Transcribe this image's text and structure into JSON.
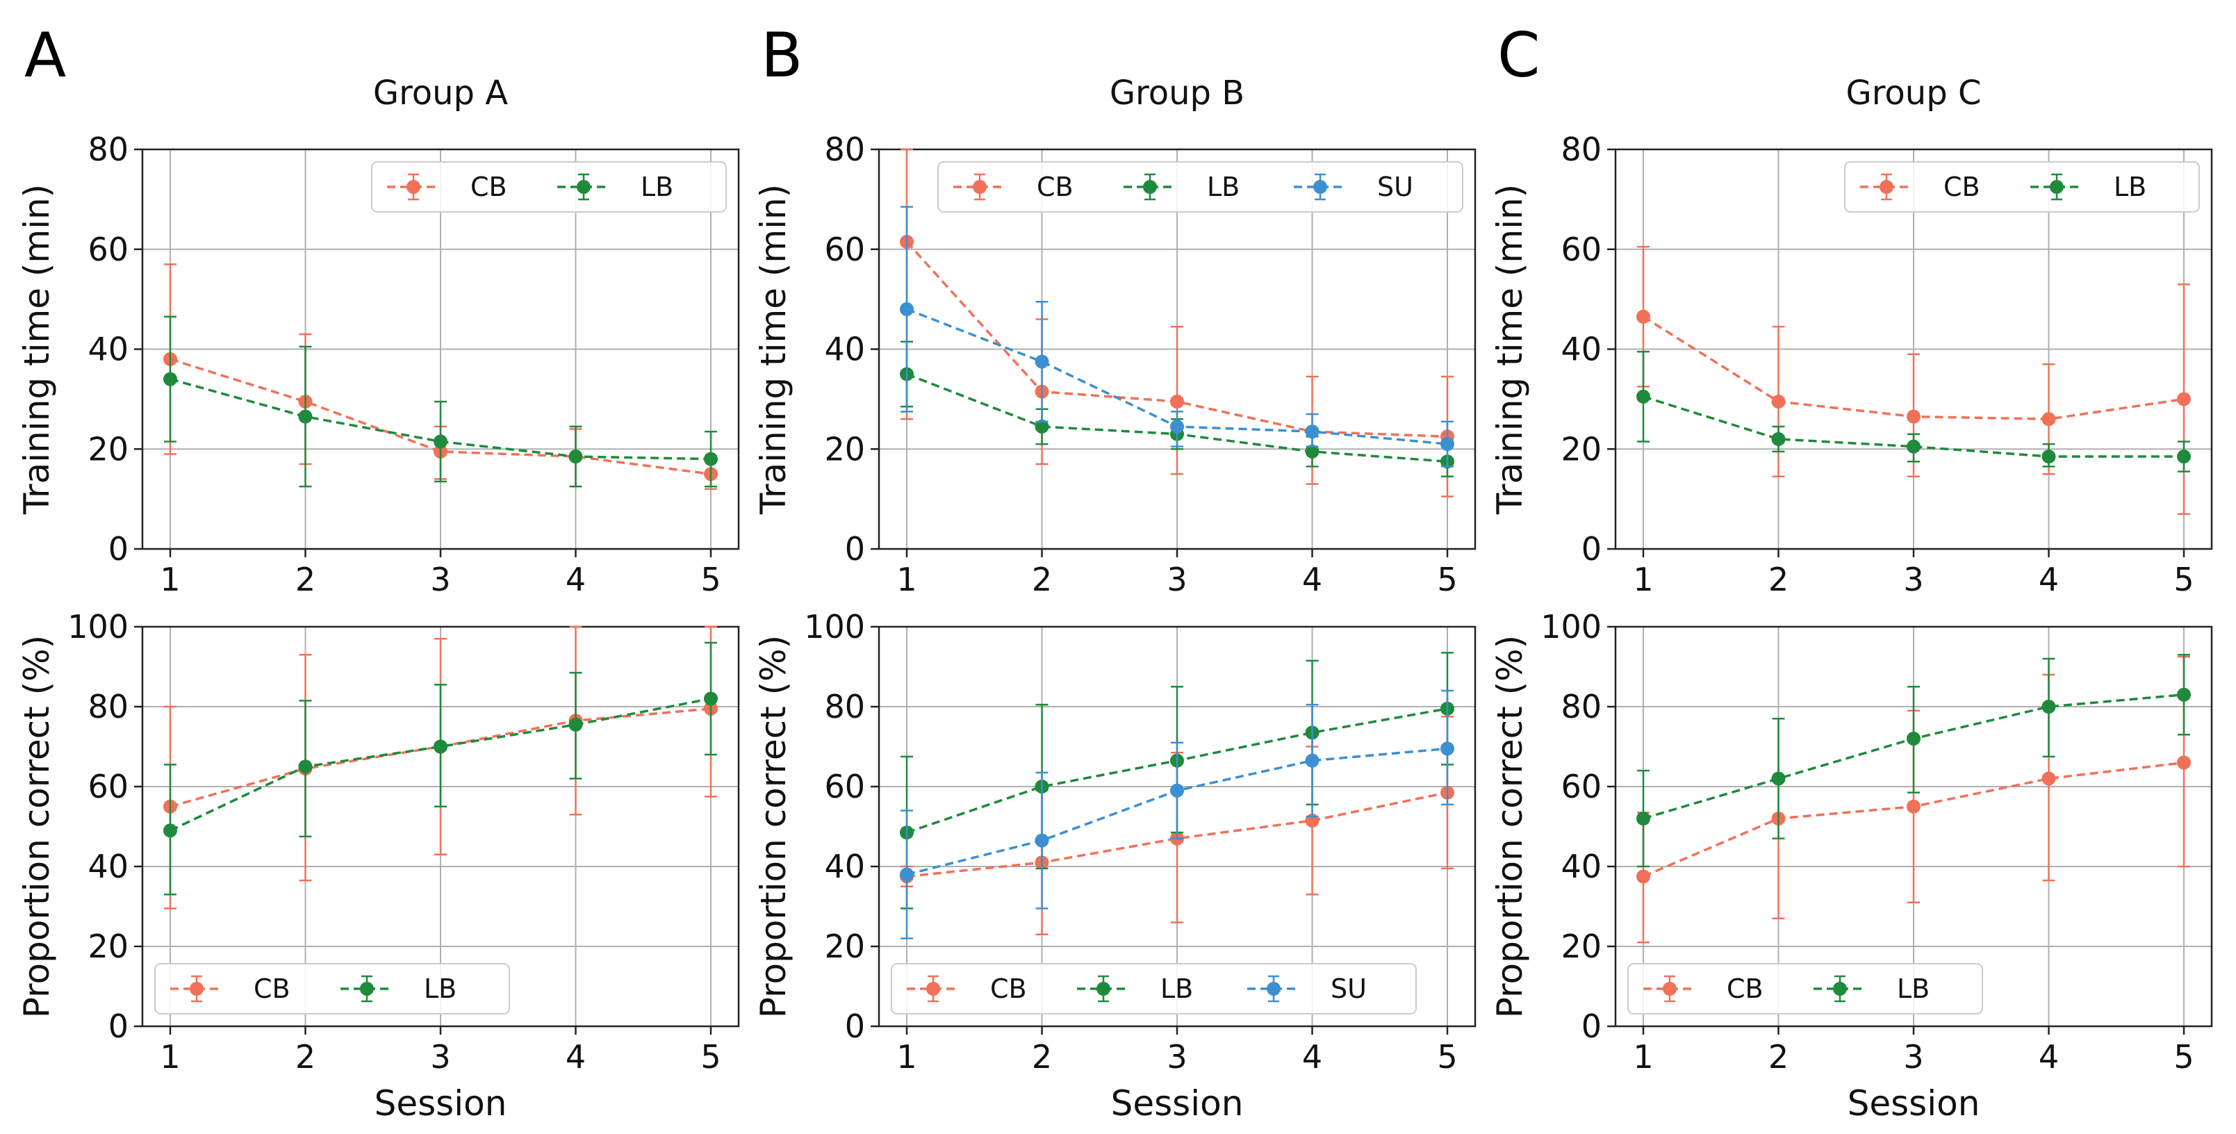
{
  "colors": {
    "CB": "#f07158",
    "LB": "#1f8a3c",
    "SU": "#3d8fd1"
  },
  "chart_data": [
    {
      "panel": "A",
      "title": "Group A",
      "type": "line",
      "ylabel": "Training time (min)",
      "xlabel": "",
      "x": [
        1,
        2,
        3,
        4,
        5
      ],
      "ylim": [
        0,
        80
      ],
      "yticks": [
        0,
        20,
        40,
        60,
        80
      ],
      "legend_loc": "upper-right",
      "series": [
        {
          "name": "CB",
          "values": [
            38,
            29.5,
            19.5,
            18.5,
            15
          ],
          "err_low": [
            19,
            17,
            14,
            12.5,
            12
          ],
          "err_high": [
            57,
            43,
            24.5,
            24,
            18
          ]
        },
        {
          "name": "LB",
          "values": [
            34,
            26.5,
            21.5,
            18.5,
            18
          ],
          "err_low": [
            21.5,
            12.5,
            13.5,
            12.5,
            12.5
          ],
          "err_high": [
            46.5,
            40.5,
            29.5,
            24.5,
            23.5
          ]
        }
      ]
    },
    {
      "panel": "",
      "title": "",
      "type": "line",
      "ylabel": "Proportion correct (%)",
      "xlabel": "Session",
      "x": [
        1,
        2,
        3,
        4,
        5
      ],
      "ylim": [
        0,
        100
      ],
      "yticks": [
        0,
        20,
        40,
        60,
        80,
        100
      ],
      "legend_loc": "lower-left",
      "series": [
        {
          "name": "CB",
          "values": [
            55,
            64.5,
            70,
            76.5,
            79.5
          ],
          "err_low": [
            29.5,
            36.5,
            43,
            53,
            57.5
          ],
          "err_high": [
            80,
            93,
            97,
            100,
            100
          ]
        },
        {
          "name": "LB",
          "values": [
            49,
            65,
            70,
            75.5,
            82
          ],
          "err_low": [
            33,
            47.5,
            55,
            62,
            68
          ],
          "err_high": [
            65.5,
            81.5,
            85.5,
            88.5,
            96
          ]
        }
      ]
    },
    {
      "panel": "B",
      "title": "Group B",
      "type": "line",
      "ylabel": "Training time (min)",
      "xlabel": "",
      "x": [
        1,
        2,
        3,
        4,
        5
      ],
      "ylim": [
        0,
        80
      ],
      "yticks": [
        0,
        20,
        40,
        60,
        80
      ],
      "legend_loc": "upper-right",
      "series": [
        {
          "name": "CB",
          "values": [
            61.5,
            31.5,
            29.5,
            23.5,
            22.5
          ],
          "err_low": [
            26,
            17,
            15,
            13,
            10.5
          ],
          "err_high": [
            80,
            46,
            44.5,
            34.5,
            34.5
          ]
        },
        {
          "name": "LB",
          "values": [
            35,
            24.5,
            23,
            19.5,
            17.5
          ],
          "err_low": [
            28.5,
            21,
            20,
            16.5,
            14.5
          ],
          "err_high": [
            41.5,
            28,
            26,
            22.5,
            20.5
          ]
        },
        {
          "name": "SU",
          "values": [
            48,
            37.5,
            24.5,
            23.5,
            21
          ],
          "err_low": [
            27.5,
            25.5,
            20.5,
            20.5,
            16.5
          ],
          "err_high": [
            68.5,
            49.5,
            27.5,
            27,
            25.5
          ]
        }
      ]
    },
    {
      "panel": "",
      "title": "",
      "type": "line",
      "ylabel": "Proportion correct (%)",
      "xlabel": "Session",
      "x": [
        1,
        2,
        3,
        4,
        5
      ],
      "ylim": [
        0,
        100
      ],
      "yticks": [
        0,
        20,
        40,
        60,
        80,
        100
      ],
      "legend_loc": "lower-left",
      "series": [
        {
          "name": "CB",
          "values": [
            37.5,
            41,
            47,
            51.5,
            58.5
          ],
          "err_low": [
            35,
            23,
            26,
            33,
            39.5
          ],
          "err_high": [
            40,
            59,
            68.5,
            70,
            77.5
          ]
        },
        {
          "name": "LB",
          "values": [
            48.5,
            60,
            66.5,
            73.5,
            79.5
          ],
          "err_low": [
            29.5,
            39.5,
            48.5,
            55.5,
            65.5
          ],
          "err_high": [
            67.5,
            80.5,
            85,
            91.5,
            93.5
          ]
        },
        {
          "name": "SU",
          "values": [
            38,
            46.5,
            59,
            66.5,
            69.5
          ],
          "err_low": [
            22,
            29.5,
            47,
            52.5,
            55.5
          ],
          "err_high": [
            54,
            63.5,
            71,
            80.5,
            84
          ]
        }
      ]
    },
    {
      "panel": "C",
      "title": "Group C",
      "type": "line",
      "ylabel": "Training time (min)",
      "xlabel": "",
      "x": [
        1,
        2,
        3,
        4,
        5
      ],
      "ylim": [
        0,
        80
      ],
      "yticks": [
        0,
        20,
        40,
        60,
        80
      ],
      "legend_loc": "upper-right",
      "series": [
        {
          "name": "CB",
          "values": [
            46.5,
            29.5,
            26.5,
            26,
            30
          ],
          "err_low": [
            32.5,
            14.5,
            14.5,
            15,
            7
          ],
          "err_high": [
            60.5,
            44.5,
            39,
            37,
            53
          ]
        },
        {
          "name": "LB",
          "values": [
            30.5,
            22,
            20.5,
            18.5,
            18.5
          ],
          "err_low": [
            21.5,
            19.5,
            17.5,
            16.5,
            15.5
          ],
          "err_high": [
            39.5,
            24.5,
            23,
            21,
            21.5
          ]
        }
      ]
    },
    {
      "panel": "",
      "title": "",
      "type": "line",
      "ylabel": "Proportion correct (%)",
      "xlabel": "Session",
      "x": [
        1,
        2,
        3,
        4,
        5
      ],
      "ylim": [
        0,
        100
      ],
      "yticks": [
        0,
        20,
        40,
        60,
        80,
        100
      ],
      "legend_loc": "lower-left",
      "series": [
        {
          "name": "CB",
          "values": [
            37.5,
            52,
            55,
            62,
            66
          ],
          "err_low": [
            21,
            27,
            31,
            36.5,
            40
          ],
          "err_high": [
            53.5,
            77,
            79,
            88,
            92.5
          ]
        },
        {
          "name": "LB",
          "values": [
            52,
            62,
            72,
            80,
            83
          ],
          "err_low": [
            40,
            47,
            58.5,
            67.5,
            73
          ],
          "err_high": [
            64,
            77,
            85,
            92,
            93
          ]
        }
      ]
    }
  ]
}
